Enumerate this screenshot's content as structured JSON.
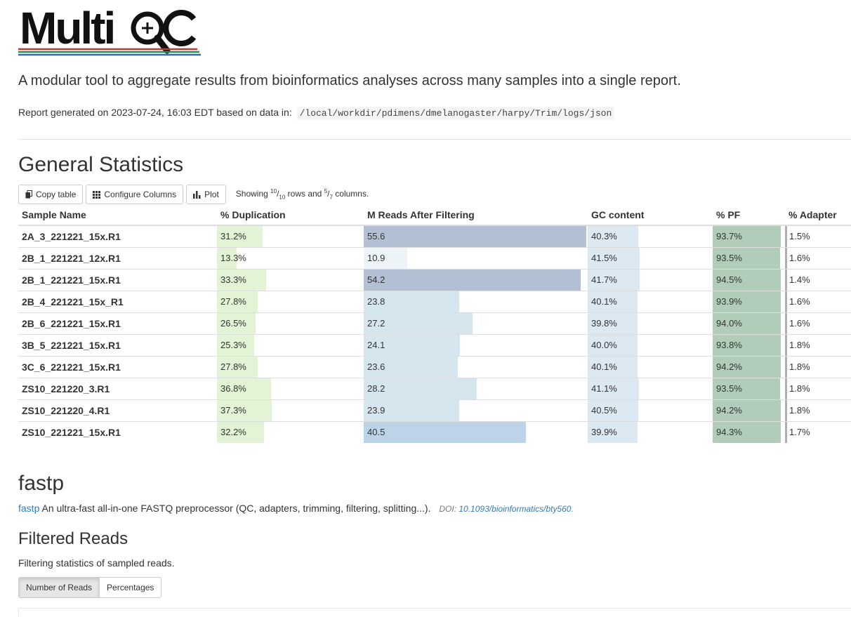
{
  "header": {
    "logo_text": "MultiQC",
    "tagline": "A modular tool to aggregate results from bioinformatics analyses across many samples into a single report.",
    "generated_prefix": "Report generated on 2023-07-24, 16:03 EDT based on data in:",
    "data_path": "/local/workdir/pdimens/dmelanogaster/harpy/Trim/logs/json"
  },
  "general_stats": {
    "title": "General Statistics",
    "toolbar": {
      "copy_label": "Copy table",
      "configure_label": "Configure Columns",
      "plot_label": "Plot",
      "showing_prefix": "Showing",
      "rows_shown": "10",
      "rows_total": "10",
      "rows_word": "rows and",
      "cols_shown": "5",
      "cols_total": "7",
      "cols_word": "columns."
    },
    "columns": [
      "Sample Name",
      "% Duplication",
      "M Reads After Filtering",
      "GC content",
      "% PF",
      "% Adapter"
    ],
    "column_colors": {
      "duplication": "#e3f3d6",
      "reads_low": "#e4eff6",
      "reads_high": "#b3c0d4",
      "gc": "#dde9f2",
      "pf": "#b1cdba"
    },
    "rows": [
      {
        "sample": "2A_3_221221_15x.R1",
        "dup": "31.2%",
        "dup_frac": 0.312,
        "reads": "55.6",
        "reads_frac": 0.556,
        "gc": "40.3%",
        "gc_frac": 0.403,
        "pf": "93.7%",
        "pf_frac": 0.937,
        "adapter": "1.5%"
      },
      {
        "sample": "2B_1_221221_12x.R1",
        "dup": "13.3%",
        "dup_frac": 0.133,
        "reads": "10.9",
        "reads_frac": 0.109,
        "gc": "41.5%",
        "gc_frac": 0.415,
        "pf": "93.5%",
        "pf_frac": 0.935,
        "adapter": "1.6%"
      },
      {
        "sample": "2B_1_221221_15x.R1",
        "dup": "33.3%",
        "dup_frac": 0.333,
        "reads": "54.2",
        "reads_frac": 0.542,
        "gc": "41.7%",
        "gc_frac": 0.417,
        "pf": "94.5%",
        "pf_frac": 0.945,
        "adapter": "1.4%"
      },
      {
        "sample": "2B_4_221221_15x_R1",
        "dup": "27.8%",
        "dup_frac": 0.278,
        "reads": "23.8",
        "reads_frac": 0.238,
        "gc": "40.1%",
        "gc_frac": 0.401,
        "pf": "93.9%",
        "pf_frac": 0.939,
        "adapter": "1.6%"
      },
      {
        "sample": "2B_6_221221_15x.R1",
        "dup": "26.5%",
        "dup_frac": 0.265,
        "reads": "27.2",
        "reads_frac": 0.272,
        "gc": "39.8%",
        "gc_frac": 0.398,
        "pf": "94.0%",
        "pf_frac": 0.94,
        "adapter": "1.6%"
      },
      {
        "sample": "3B_5_221221_15x.R1",
        "dup": "25.3%",
        "dup_frac": 0.253,
        "reads": "24.1",
        "reads_frac": 0.241,
        "gc": "40.0%",
        "gc_frac": 0.4,
        "pf": "93.8%",
        "pf_frac": 0.938,
        "adapter": "1.8%"
      },
      {
        "sample": "3C_6_221221_15x.R1",
        "dup": "27.8%",
        "dup_frac": 0.278,
        "reads": "23.6",
        "reads_frac": 0.236,
        "gc": "40.1%",
        "gc_frac": 0.401,
        "pf": "94.2%",
        "pf_frac": 0.942,
        "adapter": "1.8%"
      },
      {
        "sample": "ZS10_221220_3.R1",
        "dup": "36.8%",
        "dup_frac": 0.368,
        "reads": "28.2",
        "reads_frac": 0.282,
        "gc": "41.1%",
        "gc_frac": 0.411,
        "pf": "93.5%",
        "pf_frac": 0.935,
        "adapter": "1.8%"
      },
      {
        "sample": "ZS10_221220_4.R1",
        "dup": "37.3%",
        "dup_frac": 0.373,
        "reads": "23.9",
        "reads_frac": 0.239,
        "gc": "40.5%",
        "gc_frac": 0.405,
        "pf": "94.2%",
        "pf_frac": 0.942,
        "adapter": "1.8%"
      },
      {
        "sample": "ZS10_221221_15x.R1",
        "dup": "32.2%",
        "dup_frac": 0.322,
        "reads": "40.5",
        "reads_frac": 0.405,
        "gc": "39.9%",
        "gc_frac": 0.399,
        "pf": "94.3%",
        "pf_frac": 0.943,
        "adapter": "1.7%"
      }
    ]
  },
  "fastp": {
    "title": "fastp",
    "link_label": "fastp",
    "description": "An ultra-fast all-in-one FASTQ preprocessor (QC, adapters, trimming, filtering, splitting...).",
    "doi_prefix": "DOI:",
    "doi_value": "10.1093/bioinformatics/bty560",
    "filtered_reads_title": "Filtered Reads",
    "filtered_reads_desc": "Filtering statistics of sampled reads.",
    "tabs": [
      "Number of Reads",
      "Percentages"
    ],
    "active_tab": "Number of Reads"
  }
}
